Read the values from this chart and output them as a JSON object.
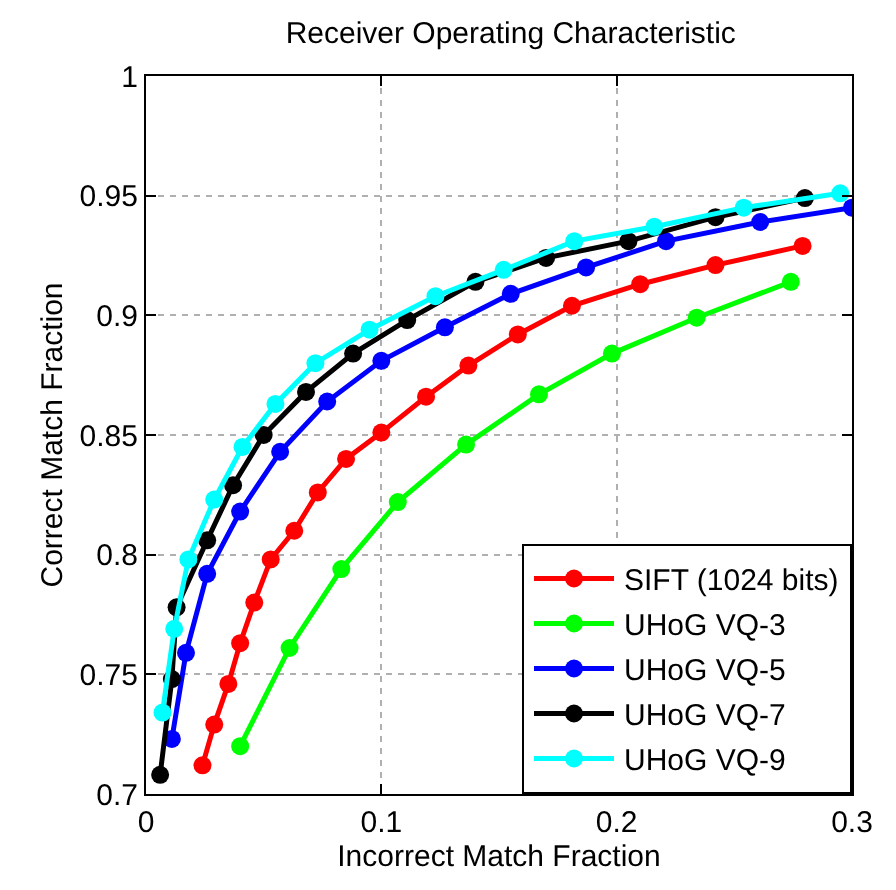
{
  "chart_data": {
    "type": "line",
    "title": "Receiver Operating Characteristic",
    "xlabel": "Incorrect Match Fraction",
    "ylabel": "Correct Match Fraction",
    "xlim": [
      0,
      0.3
    ],
    "xticks": [
      0,
      0.1,
      0.2,
      0.3
    ],
    "ylim": [
      0.7,
      1
    ],
    "yticks": [
      0.7,
      0.75,
      0.8,
      0.85,
      0.9,
      0.95,
      1
    ],
    "grid": true,
    "legend": "bottom right",
    "marker": "circle",
    "line_style": "solid",
    "series": [
      {
        "name": "SIFT (1024 bits)",
        "color": "#ff0000",
        "x": [
          0.024,
          0.029,
          0.035,
          0.04,
          0.046,
          0.053,
          0.063,
          0.073,
          0.085,
          0.1,
          0.119,
          0.137,
          0.158,
          0.181,
          0.21,
          0.242,
          0.279
        ],
        "values": [
          0.712,
          0.729,
          0.746,
          0.763,
          0.78,
          0.798,
          0.81,
          0.826,
          0.84,
          0.851,
          0.866,
          0.879,
          0.892,
          0.904,
          0.913,
          0.921,
          0.929
        ]
      },
      {
        "name": "UHoG VQ-3",
        "color": "#00ff00",
        "x": [
          0.04,
          0.061,
          0.083,
          0.107,
          0.136,
          0.167,
          0.198,
          0.234,
          0.274
        ],
        "values": [
          0.72,
          0.761,
          0.794,
          0.822,
          0.846,
          0.867,
          0.884,
          0.899,
          0.914
        ]
      },
      {
        "name": "UHoG VQ-5",
        "color": "#0000ff",
        "x": [
          0.011,
          0.017,
          0.026,
          0.04,
          0.057,
          0.077,
          0.1,
          0.127,
          0.155,
          0.187,
          0.221,
          0.261,
          0.3
        ],
        "values": [
          0.723,
          0.759,
          0.792,
          0.818,
          0.843,
          0.864,
          0.881,
          0.895,
          0.909,
          0.92,
          0.931,
          0.939,
          0.945
        ]
      },
      {
        "name": "UHoG VQ-7",
        "color": "#000000",
        "x": [
          0.006,
          0.011,
          0.013,
          0.026,
          0.037,
          0.05,
          0.068,
          0.088,
          0.111,
          0.14,
          0.17,
          0.205,
          0.242,
          0.28
        ],
        "values": [
          0.708,
          0.748,
          0.778,
          0.806,
          0.829,
          0.85,
          0.868,
          0.884,
          0.898,
          0.914,
          0.924,
          0.931,
          0.941,
          0.949
        ]
      },
      {
        "name": "UHoG VQ-9",
        "color": "#00ffff",
        "x": [
          0.007,
          0.012,
          0.018,
          0.029,
          0.041,
          0.055,
          0.072,
          0.095,
          0.123,
          0.152,
          0.182,
          0.216,
          0.254,
          0.295
        ],
        "values": [
          0.734,
          0.769,
          0.798,
          0.823,
          0.845,
          0.863,
          0.88,
          0.894,
          0.908,
          0.919,
          0.931,
          0.937,
          0.945,
          0.951
        ]
      }
    ]
  }
}
